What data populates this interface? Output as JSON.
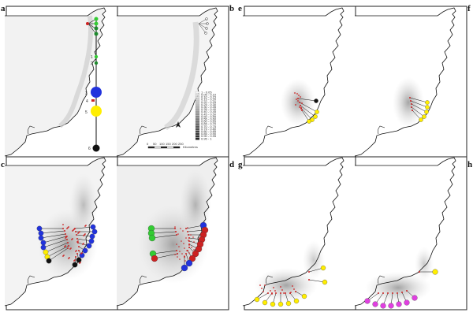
{
  "panels": [
    {
      "id": "a",
      "label": "a"
    },
    {
      "id": "b",
      "label": "b"
    },
    {
      "id": "c",
      "label": "c"
    },
    {
      "id": "d",
      "label": "d"
    },
    {
      "id": "e",
      "label": "e"
    },
    {
      "id": "f",
      "label": "f"
    },
    {
      "id": "g",
      "label": "g"
    },
    {
      "id": "h",
      "label": "h"
    }
  ],
  "legend_a": {
    "labels": [
      "1",
      "2",
      "3",
      "4",
      "5",
      "6"
    ],
    "colors": {
      "green": "#33cc33",
      "darkgreen": "#1f8a2e",
      "blue": "#2233dd",
      "yellow": "#ffee00",
      "black": "#111111",
      "red": "#cc2222",
      "magenta": "#e040e0"
    }
  },
  "legend_b": {
    "values": [
      "1 - 0.05",
      "0.05 - 0.10",
      "0.10 - 0.15",
      "0.15 - 0.20",
      "0.20 - 0.25",
      "0.25 - 0.30",
      "0.30 - 0.35",
      "0.35 - 0.40",
      "0.40 - 0.45",
      "0.45 - 0.50",
      "0.50 - 0.55",
      "0.55 - 0.60",
      "0.60 - 0.65",
      "0.65 - 0.70",
      "0.70 - 0.75",
      "0.75 - 0.80",
      "0.80 - 0.85",
      "0.85 - 0.90",
      "0.90 - 0.95",
      "0.95 - 1"
    ],
    "scale_labels": [
      "0",
      "50",
      "100",
      "150",
      "200",
      "250"
    ],
    "scale_unit": "Kilometres"
  }
}
